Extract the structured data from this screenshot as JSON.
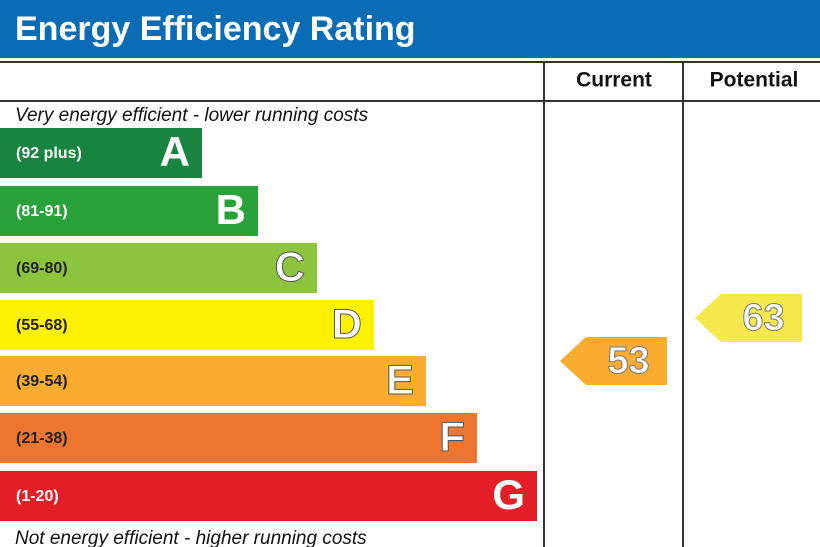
{
  "title": "Energy Efficiency Rating",
  "columns": [
    "Current",
    "Potential"
  ],
  "top_note": "Very energy efficient - lower running costs",
  "bottom_note": "Not energy efficient - higher running costs",
  "bands": [
    {
      "range": "(92 plus)",
      "letter": "A",
      "color": "#17843f"
    },
    {
      "range": "(81-91)",
      "letter": "B",
      "color": "#2aa23a"
    },
    {
      "range": "(69-80)",
      "letter": "C",
      "color": "#8cc43e"
    },
    {
      "range": "(55-68)",
      "letter": "D",
      "color": "#fff200"
    },
    {
      "range": "(39-54)",
      "letter": "E",
      "color": "#f9ac2f"
    },
    {
      "range": "(21-38)",
      "letter": "F",
      "color": "#ee7530"
    },
    {
      "range": "(1-20)",
      "letter": "G",
      "color": "#e31e26"
    }
  ],
  "current": {
    "value": "53",
    "color": "#f9ac2f"
  },
  "potential": {
    "value": "63",
    "color": "#f5e84a"
  }
}
